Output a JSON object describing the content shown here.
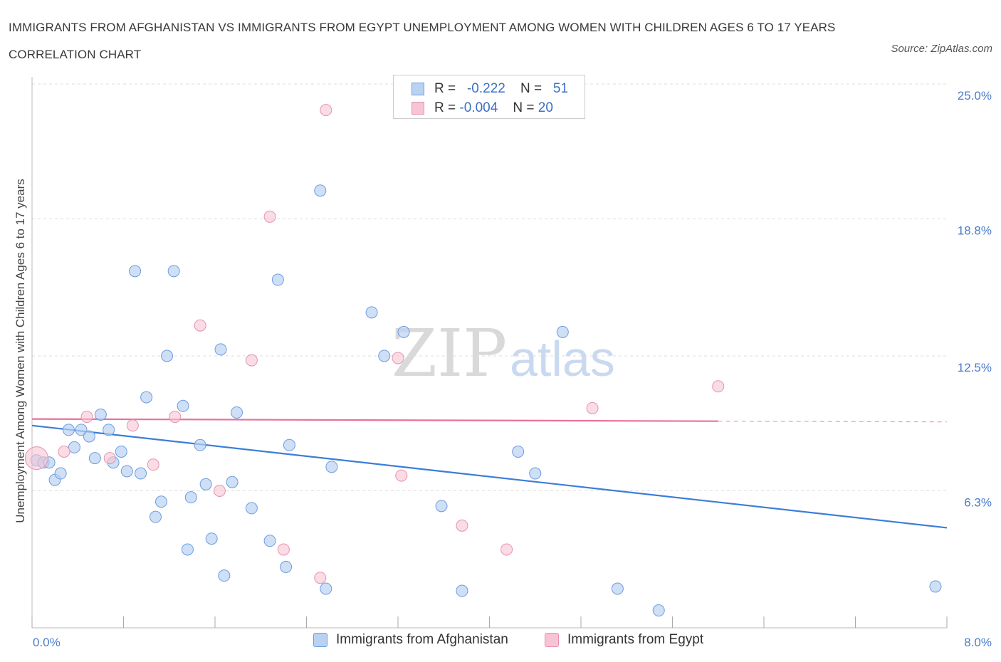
{
  "title": "IMMIGRANTS FROM AFGHANISTAN VS IMMIGRANTS FROM EGYPT UNEMPLOYMENT AMONG WOMEN WITH CHILDREN AGES 6 TO 17 YEARS CORRELATION CHART",
  "source": "Source: ZipAtlas.com",
  "watermark": {
    "zip": "ZIP",
    "atlas": "atlas"
  },
  "legend": {
    "rows": [
      {
        "r_label": "R =",
        "r_value": "-0.222",
        "n_label": "N =",
        "n_value": "51"
      },
      {
        "r_label": "R =",
        "r_value": "-0.004",
        "n_label": "N =",
        "n_value": "20"
      }
    ]
  },
  "bottom_legend": [
    "Immigrants from Afghanistan",
    "Immigrants from Egypt"
  ],
  "colors": {
    "afghanistan_fill": "#b9d2f2",
    "afghanistan_stroke": "#6d9ce0",
    "afghanistan_line": "#3b7dd8",
    "egypt_fill": "#f7c4d4",
    "egypt_stroke": "#e891ae",
    "egypt_line": "#e8719a",
    "tick_label": "#4a7cc8",
    "grid": "#dddddd"
  },
  "chart_data": {
    "type": "scatter",
    "title": "IMMIGRANTS FROM AFGHANISTAN VS IMMIGRANTS FROM EGYPT UNEMPLOYMENT AMONG WOMEN WITH CHILDREN AGES 6 TO 17 YEARS CORRELATION CHART",
    "xlabel": "",
    "ylabel": "Unemployment Among Women with Children Ages 6 to 17 years",
    "xlim": [
      0,
      8.0
    ],
    "ylim": [
      0,
      25.0
    ],
    "x_tick_labels": [
      "0.0%",
      "8.0%"
    ],
    "y_ticks": [
      6.3,
      12.5,
      18.8,
      25.0
    ],
    "y_tick_labels": [
      "6.3%",
      "12.5%",
      "18.8%",
      "25.0%"
    ],
    "grid": true,
    "legend_position": "top-center",
    "series": [
      {
        "name": "Immigrants from Afghanistan",
        "R": -0.222,
        "N": 51,
        "trend": {
          "x": [
            0.0,
            8.0
          ],
          "y": [
            9.3,
            4.6
          ]
        },
        "points": [
          [
            0.04,
            7.7
          ],
          [
            0.1,
            7.6
          ],
          [
            0.15,
            7.6
          ],
          [
            0.2,
            6.8
          ],
          [
            0.25,
            7.1
          ],
          [
            0.32,
            9.1
          ],
          [
            0.37,
            8.3
          ],
          [
            0.43,
            9.1
          ],
          [
            0.5,
            8.8
          ],
          [
            0.55,
            7.8
          ],
          [
            0.6,
            9.8
          ],
          [
            0.67,
            9.1
          ],
          [
            0.71,
            7.6
          ],
          [
            0.78,
            8.1
          ],
          [
            0.83,
            7.2
          ],
          [
            0.9,
            16.4
          ],
          [
            0.95,
            7.1
          ],
          [
            1.0,
            10.6
          ],
          [
            1.08,
            5.1
          ],
          [
            1.13,
            5.8
          ],
          [
            1.18,
            12.5
          ],
          [
            1.24,
            16.4
          ],
          [
            1.32,
            10.2
          ],
          [
            1.36,
            3.6
          ],
          [
            1.39,
            6.0
          ],
          [
            1.47,
            8.4
          ],
          [
            1.52,
            6.6
          ],
          [
            1.57,
            4.1
          ],
          [
            1.65,
            12.8
          ],
          [
            1.68,
            2.4
          ],
          [
            1.75,
            6.7
          ],
          [
            1.79,
            9.9
          ],
          [
            1.92,
            5.5
          ],
          [
            2.08,
            4.0
          ],
          [
            2.15,
            16.0
          ],
          [
            2.22,
            2.8
          ],
          [
            2.25,
            8.4
          ],
          [
            2.52,
            20.1
          ],
          [
            2.57,
            1.8
          ],
          [
            2.62,
            7.4
          ],
          [
            2.97,
            14.5
          ],
          [
            3.08,
            12.5
          ],
          [
            3.25,
            13.6
          ],
          [
            3.58,
            5.6
          ],
          [
            3.76,
            1.7
          ],
          [
            4.25,
            8.1
          ],
          [
            4.4,
            7.1
          ],
          [
            4.64,
            13.6
          ],
          [
            5.12,
            1.8
          ],
          [
            5.48,
            0.8
          ],
          [
            7.9,
            1.9
          ]
        ]
      },
      {
        "name": "Immigrants from Egypt",
        "R": -0.004,
        "N": 20,
        "trend": {
          "x": [
            0.0,
            6.0
          ],
          "y": [
            9.6,
            9.5
          ],
          "dashed_to": 8.0
        },
        "points": [
          [
            0.04,
            7.8
          ],
          [
            0.28,
            8.1
          ],
          [
            0.48,
            9.7
          ],
          [
            0.68,
            7.8
          ],
          [
            0.88,
            9.3
          ],
          [
            1.06,
            7.5
          ],
          [
            1.25,
            9.7
          ],
          [
            1.47,
            13.9
          ],
          [
            1.64,
            6.3
          ],
          [
            1.92,
            12.3
          ],
          [
            2.08,
            18.9
          ],
          [
            2.2,
            3.6
          ],
          [
            2.52,
            2.3
          ],
          [
            2.57,
            23.8
          ],
          [
            3.2,
            12.4
          ],
          [
            3.23,
            7.0
          ],
          [
            3.76,
            4.7
          ],
          [
            4.15,
            3.6
          ],
          [
            4.9,
            10.1
          ],
          [
            6.0,
            11.1
          ]
        ]
      }
    ]
  }
}
